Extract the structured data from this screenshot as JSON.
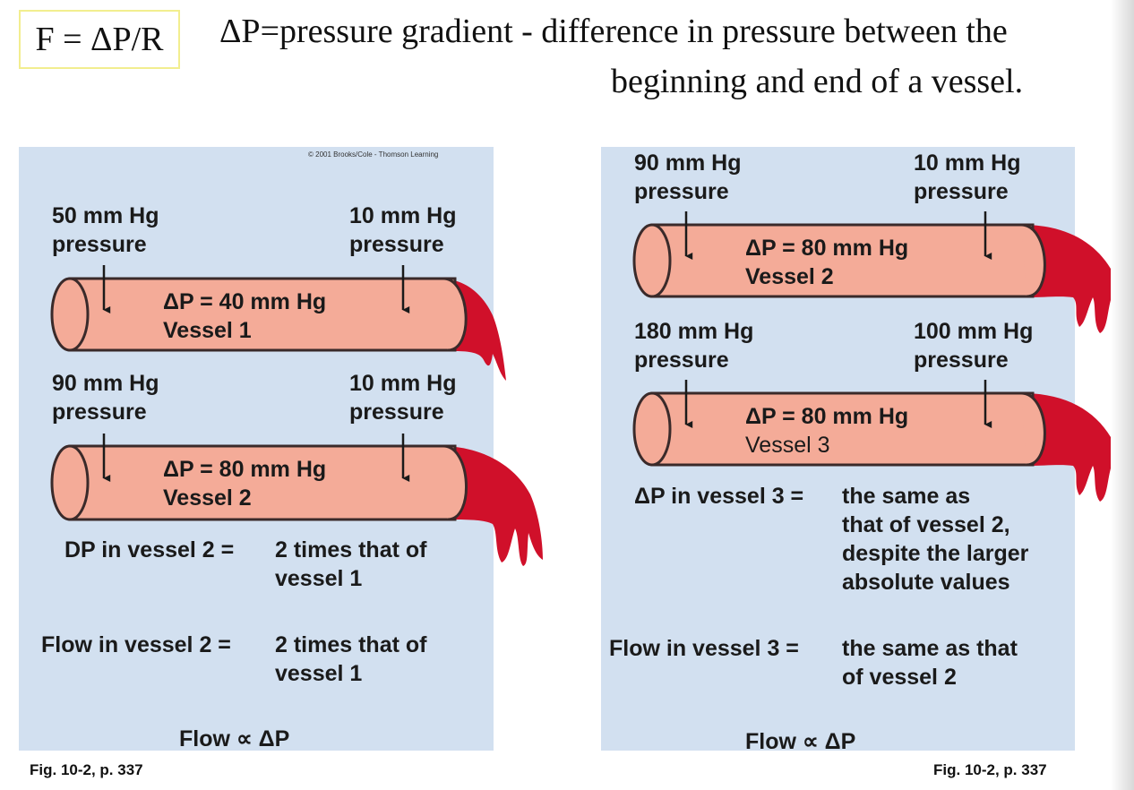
{
  "header": {
    "formula": "F = ΔP/R",
    "definition_line1": "ΔP=pressure gradient - difference in pressure between the",
    "definition_line2": "beginning and end of a vessel."
  },
  "left_panel": {
    "copyright": "© 2001 Brooks/Cole - Thomson Learning",
    "vessel1": {
      "start_value": "50 mm Hg",
      "start_word": "pressure",
      "end_value": "10 mm Hg",
      "end_word": "pressure",
      "delta": "ΔP = 40 mm Hg",
      "name": "Vessel 1"
    },
    "vessel2": {
      "start_value": "90 mm Hg",
      "start_word": "pressure",
      "end_value": "10 mm Hg",
      "end_word": "pressure",
      "delta": "ΔP = 80 mm Hg",
      "name": "Vessel 2"
    },
    "statement1_label": "DP in vessel 2 =",
    "statement1_line1": "2 times that of",
    "statement1_line2": "vessel 1",
    "statement2_label": "Flow in vessel 2 =",
    "statement2_line1": "2 times that of",
    "statement2_line2": "vessel 1",
    "proportional": "Flow ∝  ΔP",
    "caption": "Fig. 10-2, p. 337"
  },
  "right_panel": {
    "vessel2": {
      "start_value": "90 mm Hg",
      "start_word": "pressure",
      "end_value": "10 mm Hg",
      "end_word": "pressure",
      "delta": "ΔP = 80 mm Hg",
      "name": "Vessel 2"
    },
    "vessel3": {
      "start_value": "180 mm Hg",
      "start_word": "pressure",
      "end_value": "100 mm Hg",
      "end_word": "pressure",
      "delta": "ΔP = 80 mm Hg",
      "name": "Vessel 3"
    },
    "statement1_label": "ΔP in vessel 3 =",
    "statement1_lines": [
      "the same as",
      "that of vessel 2,",
      "despite the larger",
      "absolute values"
    ],
    "statement2_label": "Flow in vessel 3 =",
    "statement2_line1": "the same as that",
    "statement2_line2": "of vessel 2",
    "proportional": "Flow ∝  ΔP",
    "caption": "Fig. 10-2, p. 337"
  },
  "colors": {
    "panel_bg": "#d2e0f0",
    "vessel_fill": "#f4ab98",
    "vessel_outline": "#3a2a2a",
    "blood": "#d0102a",
    "formula_border": "#f2ee8f"
  }
}
